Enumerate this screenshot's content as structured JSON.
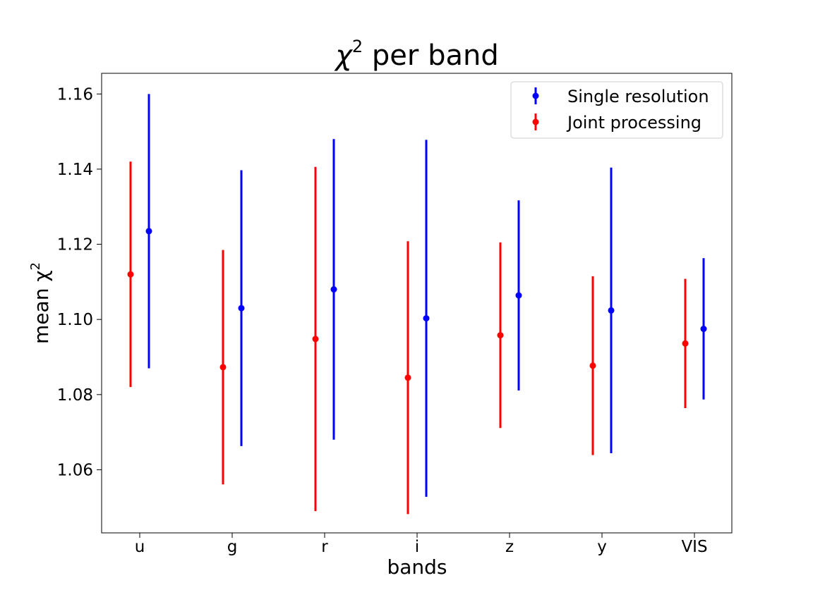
{
  "chart_data": {
    "type": "scatter",
    "title_main": "χ",
    "title_sup": "2",
    "title_rest": " per band",
    "xlabel": "bands",
    "ylabel_main": "mean χ",
    "ylabel_sup": "2",
    "categories": [
      "u",
      "g",
      "r",
      "i",
      "z",
      "y",
      "VIS"
    ],
    "ylim": [
      1.0432,
      1.1655
    ],
    "yticks": [
      1.06,
      1.08,
      1.1,
      1.12,
      1.14,
      1.16
    ],
    "ytick_labels": [
      "1.06",
      "1.08",
      "1.10",
      "1.12",
      "1.14",
      "1.16"
    ],
    "grid": false,
    "legend_position": "top-right",
    "series": [
      {
        "name": "Single resolution",
        "color": "#0000ff",
        "values": [
          1.1235,
          1.103,
          1.108,
          1.1003,
          1.1064,
          1.1024,
          1.0975
        ],
        "errors": [
          0.0365,
          0.0367,
          0.04,
          0.0475,
          0.0253,
          0.038,
          0.0188
        ]
      },
      {
        "name": "Joint processing",
        "color": "#ff0000",
        "values": [
          1.112,
          1.0873,
          1.0948,
          1.0845,
          1.0958,
          1.0877,
          1.0936
        ],
        "errors": [
          0.03,
          0.0312,
          0.0458,
          0.0363,
          0.0247,
          0.0238,
          0.0172
        ]
      }
    ]
  }
}
